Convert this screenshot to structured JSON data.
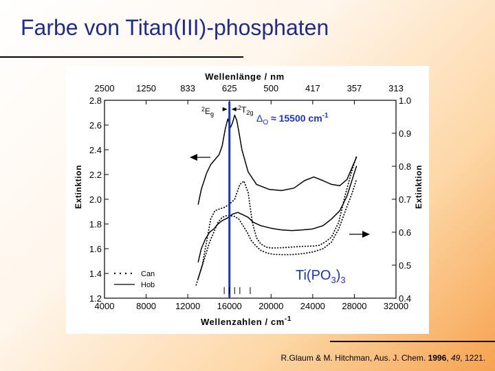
{
  "slide": {
    "title": "Farbe von Titan(III)-phosphaten",
    "citation": {
      "authors": "R.Glaum & M. Hitchman, Aus. J. Chem.",
      "year": "1996",
      "volume": "49",
      "pages": ", 1221."
    }
  },
  "chart_data": {
    "type": "line",
    "top_xlabel": "Wellenlänge / nm",
    "xlabel": "Wellenzahlen / cm",
    "xlabel_sup": "-1",
    "ylabel_left": "Extinktion",
    "ylabel_right": "Extinktion",
    "xlim": [
      4000,
      32000
    ],
    "ylim_left": [
      1.2,
      2.8
    ],
    "ylim_right": [
      0.4,
      1.0
    ],
    "x_ticks": [
      "4000",
      "8000",
      "12000",
      "16000",
      "20000",
      "24000",
      "28000",
      "32000"
    ],
    "top_ticks": [
      {
        "x": 4000,
        "label": "2500"
      },
      {
        "x": 8000,
        "label": "1250"
      },
      {
        "x": 12000,
        "label": "833"
      },
      {
        "x": 16000,
        "label": "625"
      },
      {
        "x": 20000,
        "label": "500"
      },
      {
        "x": 24000,
        "label": "417"
      },
      {
        "x": 28000,
        "label": "357"
      },
      {
        "x": 32000,
        "label": "313"
      }
    ],
    "left_ticks": [
      "1.2",
      "1.4",
      "1.6",
      "1.8",
      "2.0",
      "2.2",
      "2.4",
      "2.6",
      "2.8"
    ],
    "right_ticks": [
      "0.4",
      "0.5",
      "0.6",
      "0.7",
      "0.8",
      "0.9",
      "1.0"
    ],
    "grid": false,
    "legend": {
      "position": "bottom-left",
      "entries": [
        {
          "label": "Can",
          "style": "dotted"
        },
        {
          "label": "Hob",
          "style": "solid"
        }
      ]
    },
    "vertical_marker": {
      "x": 16000,
      "color": "#1a33c8"
    },
    "tick_marks_x": [
      15500,
      16000,
      16500,
      17000,
      18000
    ],
    "annotations": {
      "state_e": "2",
      "state_e_sub": "E",
      "state_e_g": "g",
      "state_t": "2",
      "state_t_main": "T",
      "state_t_sub": "2g",
      "delta_symbol": "Δ",
      "delta_sub": "O",
      "delta_value": " ≈ 15500 cm",
      "delta_sup": "-1",
      "compound_main": "Ti(PO",
      "compound_sub3": "3",
      "compound_close": ")",
      "compound_sub3b": "3"
    },
    "series": [
      {
        "name": "Hob",
        "axis": "left",
        "style": "solid",
        "x": [
          13000,
          13300,
          13800,
          14200,
          14600,
          15000,
          15300,
          15600,
          15850,
          16100,
          16300,
          16500,
          16700,
          16900,
          17200,
          17800,
          18600,
          19800,
          21000,
          22200,
          23200,
          24100,
          25000,
          25800,
          26600,
          27300,
          27900,
          28200
        ],
        "y": [
          1.96,
          2.08,
          2.21,
          2.28,
          2.32,
          2.36,
          2.43,
          2.57,
          2.65,
          2.58,
          2.62,
          2.68,
          2.64,
          2.55,
          2.4,
          2.22,
          2.12,
          2.08,
          2.07,
          2.09,
          2.15,
          2.18,
          2.15,
          2.12,
          2.11,
          2.16,
          2.28,
          2.34
        ]
      },
      {
        "name": "Hob",
        "axis": "right",
        "style": "solid",
        "x": [
          13000,
          13300,
          13700,
          14100,
          14500,
          14900,
          15300,
          15800,
          16300,
          16800,
          17300,
          17800,
          18300,
          19000,
          20000,
          21000,
          22000,
          23000,
          24000,
          25000,
          25800,
          26600,
          27300,
          27900,
          28200
        ],
        "y": [
          0.51,
          0.55,
          0.58,
          0.6,
          0.61,
          0.625,
          0.635,
          0.643,
          0.655,
          0.66,
          0.653,
          0.645,
          0.63,
          0.62,
          0.612,
          0.607,
          0.605,
          0.607,
          0.61,
          0.62,
          0.64,
          0.665,
          0.71,
          0.77,
          0.8
        ]
      },
      {
        "name": "Can",
        "axis": "right",
        "style": "dotted",
        "x": [
          13000,
          13400,
          13800,
          14200,
          14600,
          15000,
          15500,
          16000,
          16500,
          17000,
          17400,
          17800,
          18200,
          18600,
          19000,
          19500,
          20000,
          21000,
          22000,
          23000,
          24000,
          24600,
          25200,
          25800,
          26500,
          27100,
          27700,
          28200
        ],
        "y": [
          0.46,
          0.5,
          0.57,
          0.64,
          0.665,
          0.67,
          0.675,
          0.685,
          0.7,
          0.745,
          0.755,
          0.72,
          0.63,
          0.583,
          0.565,
          0.555,
          0.552,
          0.553,
          0.555,
          0.557,
          0.558,
          0.56,
          0.57,
          0.585,
          0.63,
          0.71,
          0.78,
          0.83
        ]
      },
      {
        "name": "Can",
        "axis": "right",
        "style": "dotted",
        "x": [
          12800,
          13000,
          13300,
          13700,
          14100,
          14500,
          14900,
          15300,
          15700,
          16100,
          16500,
          16900,
          17300,
          17700,
          18100,
          18500,
          19000,
          19600,
          20200,
          21000,
          22000,
          23000,
          24000,
          25000,
          25800,
          26500,
          27200,
          27800,
          28200
        ],
        "y": [
          0.44,
          0.46,
          0.49,
          0.53,
          0.57,
          0.6,
          0.63,
          0.645,
          0.65,
          0.65,
          0.648,
          0.64,
          0.62,
          0.6,
          0.575,
          0.56,
          0.545,
          0.537,
          0.533,
          0.532,
          0.532,
          0.535,
          0.54,
          0.55,
          0.57,
          0.61,
          0.67,
          0.72,
          0.76
        ]
      }
    ]
  }
}
